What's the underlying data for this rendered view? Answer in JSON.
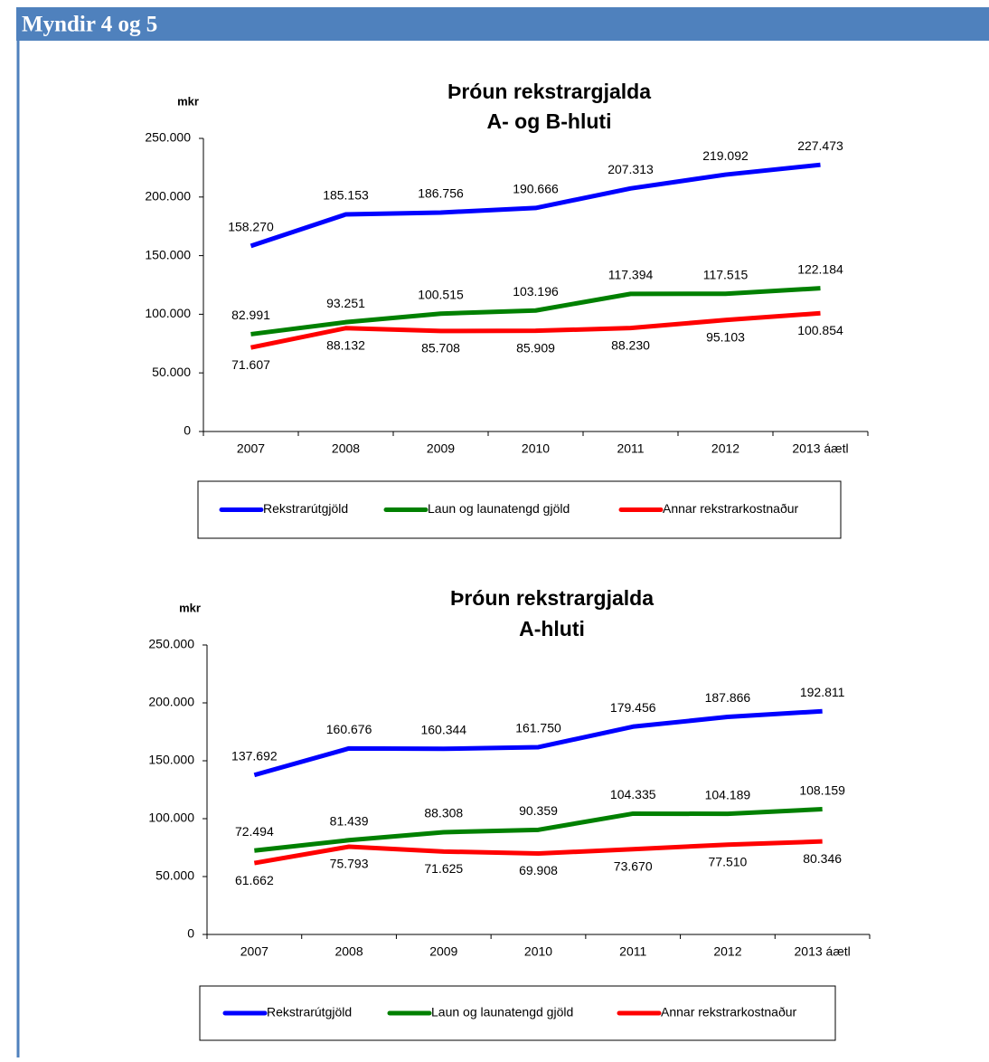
{
  "header": {
    "title": "Myndir 4 og 5"
  },
  "chart_data": [
    {
      "type": "line",
      "title": "Þróun rekstrargjalda",
      "subtitle": "A- og B-hluti",
      "y_label": "mkr",
      "categories": [
        "2007",
        "2008",
        "2009",
        "2010",
        "2011",
        "2012",
        "2013 áætl"
      ],
      "ylim": [
        0,
        250000
      ],
      "yticks": [
        0,
        {
          "value": 50000,
          "label": "50.000"
        },
        {
          "value": 100000,
          "label": "100.000"
        },
        {
          "value": 150000,
          "label": "150.000"
        },
        {
          "value": 200000,
          "label": "200.000"
        },
        {
          "value": 250000,
          "label": "250.000"
        }
      ],
      "legend": "bottom",
      "series": [
        {
          "name": "Rekstrarútgjöld",
          "color": "#0000ff",
          "values": [
            158270,
            185153,
            186756,
            190666,
            207313,
            219092,
            227473
          ],
          "value_labels": [
            "158.270",
            "185.153",
            "186.756",
            "190.666",
            "207.313",
            "219.092",
            "227.473"
          ]
        },
        {
          "name": "Laun og launatengd gjöld",
          "color": "#008000",
          "values": [
            82991,
            93251,
            100515,
            103196,
            117394,
            117515,
            122184
          ],
          "value_labels": [
            "82.991",
            "93.251",
            "100.515",
            "103.196",
            "117.394",
            "117.515",
            "122.184"
          ]
        },
        {
          "name": "Annar rekstrarkostnaður",
          "color": "#ff0000",
          "values": [
            71607,
            88132,
            85708,
            85909,
            88230,
            95103,
            100854
          ],
          "value_labels": [
            "71.607",
            "88.132",
            "85.708",
            "85.909",
            "88.230",
            "95.103",
            "100.854"
          ]
        }
      ]
    },
    {
      "type": "line",
      "title": "Þróun rekstrargjalda",
      "subtitle": "A-hluti",
      "y_label": "mkr",
      "categories": [
        "2007",
        "2008",
        "2009",
        "2010",
        "2011",
        "2012",
        "2013 áætl"
      ],
      "ylim": [
        0,
        250000
      ],
      "yticks": [
        0,
        {
          "value": 50000,
          "label": "50.000"
        },
        {
          "value": 100000,
          "label": "100.000"
        },
        {
          "value": 150000,
          "label": "150.000"
        },
        {
          "value": 200000,
          "label": "200.000"
        },
        {
          "value": 250000,
          "label": "250.000"
        }
      ],
      "legend": "bottom",
      "series": [
        {
          "name": "Rekstrarútgjöld",
          "color": "#0000ff",
          "values": [
            137692,
            160676,
            160344,
            161750,
            179456,
            187866,
            192811
          ],
          "value_labels": [
            "137.692",
            "160.676",
            "160.344",
            "161.750",
            "179.456",
            "187.866",
            "192.811"
          ]
        },
        {
          "name": "Laun og launatengd gjöld",
          "color": "#008000",
          "values": [
            72494,
            81439,
            88308,
            90359,
            104335,
            104189,
            108159
          ],
          "value_labels": [
            "72.494",
            "81.439",
            "88.308",
            "90.359",
            "104.335",
            "104.189",
            "108.159"
          ]
        },
        {
          "name": "Annar rekstrarkostnaður",
          "color": "#ff0000",
          "values": [
            61662,
            75793,
            71625,
            69908,
            73670,
            77510,
            80346
          ],
          "value_labels": [
            "61.662",
            "75.793",
            "71.625",
            "69.908",
            "73.670",
            "77.510",
            "80.346"
          ]
        }
      ]
    }
  ]
}
